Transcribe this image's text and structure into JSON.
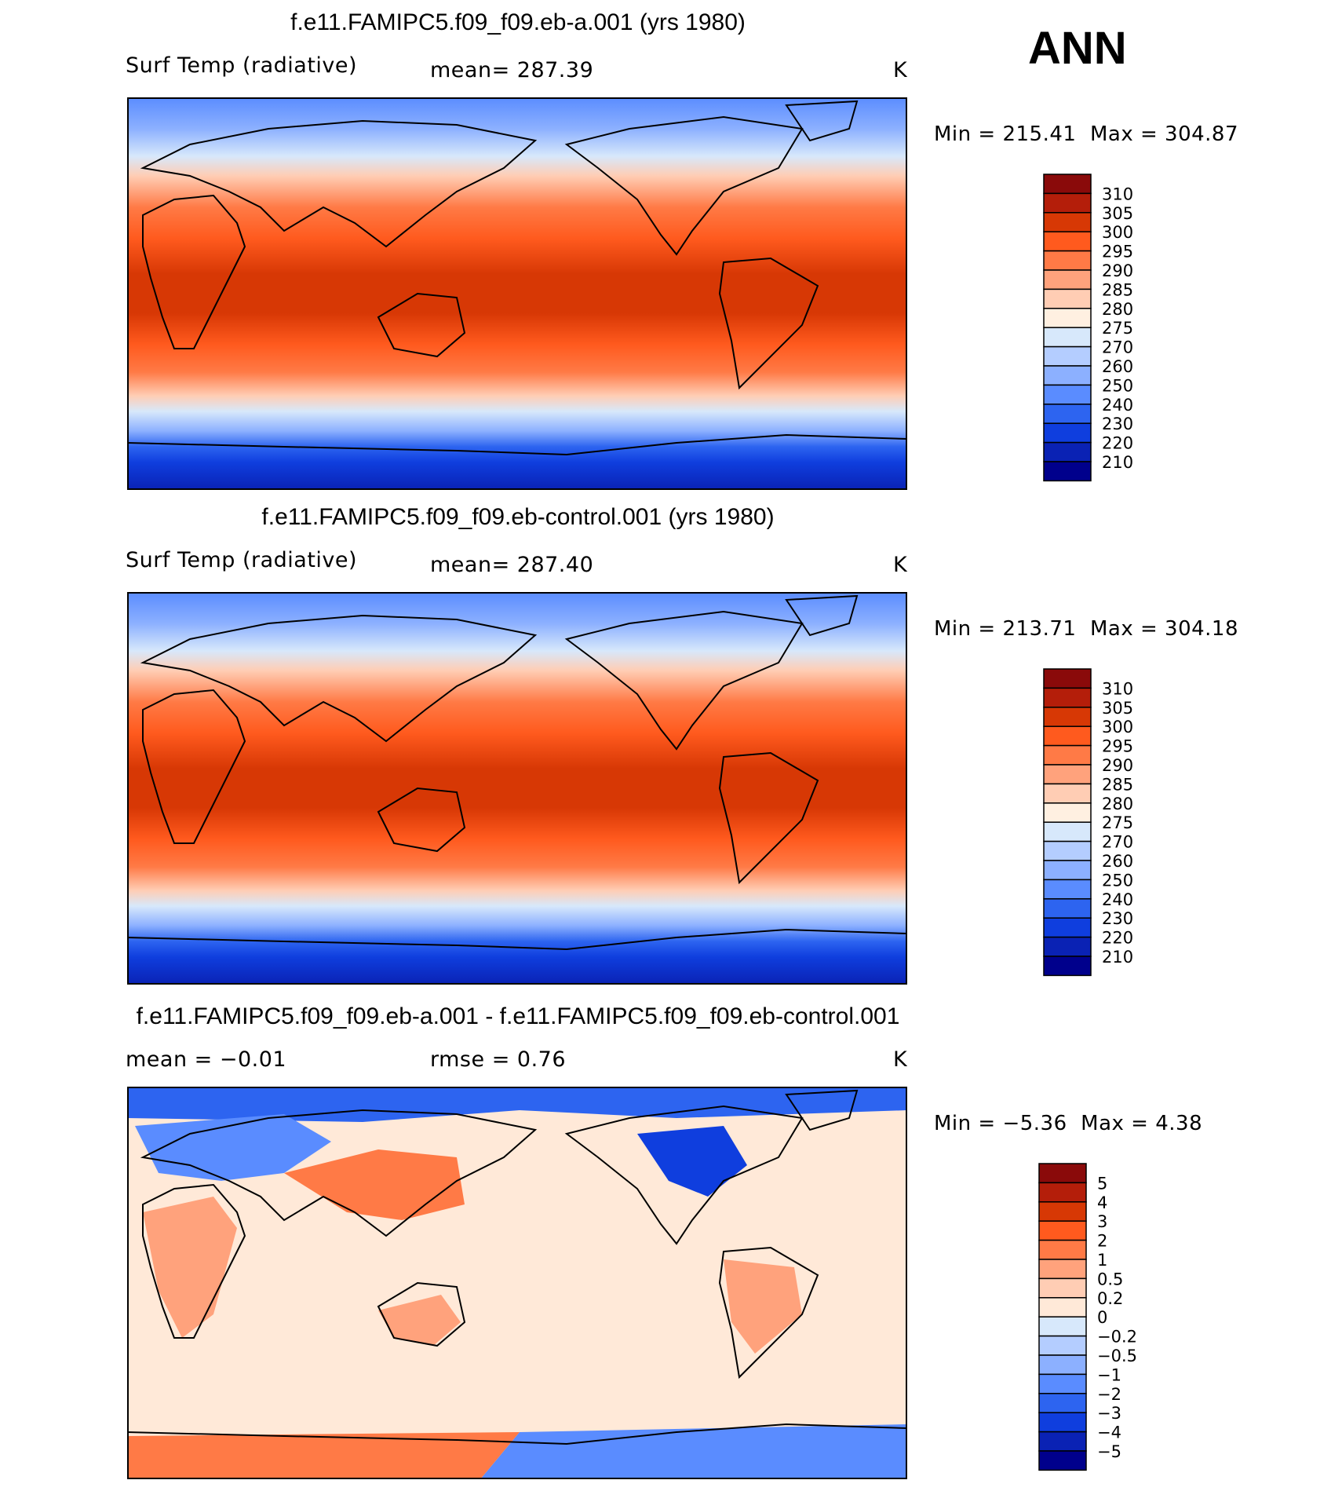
{
  "season": "ANN",
  "panels": [
    {
      "title": "f.e11.FAMIPC5.f09_f09.eb-a.001 (yrs 1980)",
      "left_label": "Surf Temp (radiative)",
      "center_label": "mean=  287.39",
      "units": "K",
      "min_text": "Min  =  215.41",
      "max_text": "Max  =  304.87",
      "kind": "abs"
    },
    {
      "title": "f.e11.FAMIPC5.f09_f09.eb-control.001 (yrs 1980)",
      "left_label": "Surf Temp (radiative)",
      "center_label": "mean=  287.40",
      "units": "K",
      "min_text": "Min  =  213.71",
      "max_text": "Max  =  304.18",
      "kind": "abs"
    },
    {
      "title": "f.e11.FAMIPC5.f09_f09.eb-a.001 - f.e11.FAMIPC5.f09_f09.eb-control.001",
      "left_label": "mean  =    −0.01",
      "center_label": "rmse  =     0.76",
      "units": "K",
      "min_text": "Min  =    −5.36",
      "max_text": "Max  =     4.38",
      "kind": "diff"
    }
  ],
  "colorbars": {
    "abs": {
      "labels": [
        "310",
        "305",
        "300",
        "295",
        "290",
        "285",
        "280",
        "275",
        "270",
        "260",
        "250",
        "240",
        "230",
        "220",
        "210"
      ],
      "colors": [
        "#8a0a0a",
        "#b41e0a",
        "#d73805",
        "#ff5a1e",
        "#ff7a46",
        "#ffa27c",
        "#ffcdb4",
        "#fff0e1",
        "#d7e8fb",
        "#b4cdff",
        "#8cb0ff",
        "#5a8cff",
        "#2d64f0",
        "#0f3ede",
        "#0a22b4",
        "#00008c"
      ]
    },
    "diff": {
      "labels": [
        "5",
        "4",
        "3",
        "2",
        "1",
        "0.5",
        "0.2",
        "0",
        "−0.2",
        "−0.5",
        "−1",
        "−2",
        "−3",
        "−4",
        "−5"
      ],
      "colors": [
        "#8a0a0a",
        "#b41e0a",
        "#d73805",
        "#ff5a1e",
        "#ff7a46",
        "#ffa27c",
        "#ffcdb4",
        "#ffe9d8",
        "#d7e8fb",
        "#b4cdff",
        "#8cb0ff",
        "#5a8cff",
        "#2d64f0",
        "#0f3ede",
        "#0a22b4",
        "#00008c"
      ]
    }
  },
  "chart_data": [
    {
      "type": "heatmap",
      "title": "f.e11.FAMIPC5.f09_f09.eb-a.001 (yrs 1980)",
      "variable": "Surf Temp (radiative)",
      "units": "K",
      "mean": 287.39,
      "min": 215.41,
      "max": 304.87,
      "contour_levels": [
        210,
        220,
        230,
        240,
        250,
        260,
        270,
        275,
        280,
        285,
        290,
        295,
        300,
        305,
        310
      ]
    },
    {
      "type": "heatmap",
      "title": "f.e11.FAMIPC5.f09_f09.eb-control.001 (yrs 1980)",
      "variable": "Surf Temp (radiative)",
      "units": "K",
      "mean": 287.4,
      "min": 213.71,
      "max": 304.18,
      "contour_levels": [
        210,
        220,
        230,
        240,
        250,
        260,
        270,
        275,
        280,
        285,
        290,
        295,
        300,
        305,
        310
      ]
    },
    {
      "type": "heatmap",
      "title": "f.e11.FAMIPC5.f09_f09.eb-a.001 - f.e11.FAMIPC5.f09_f09.eb-control.001",
      "units": "K",
      "mean": -0.01,
      "rmse": 0.76,
      "min": -5.36,
      "max": 4.38,
      "contour_levels": [
        -5,
        -4,
        -3,
        -2,
        -1,
        -0.5,
        -0.2,
        0,
        0.2,
        0.5,
        1,
        2,
        3,
        4,
        5
      ]
    }
  ]
}
